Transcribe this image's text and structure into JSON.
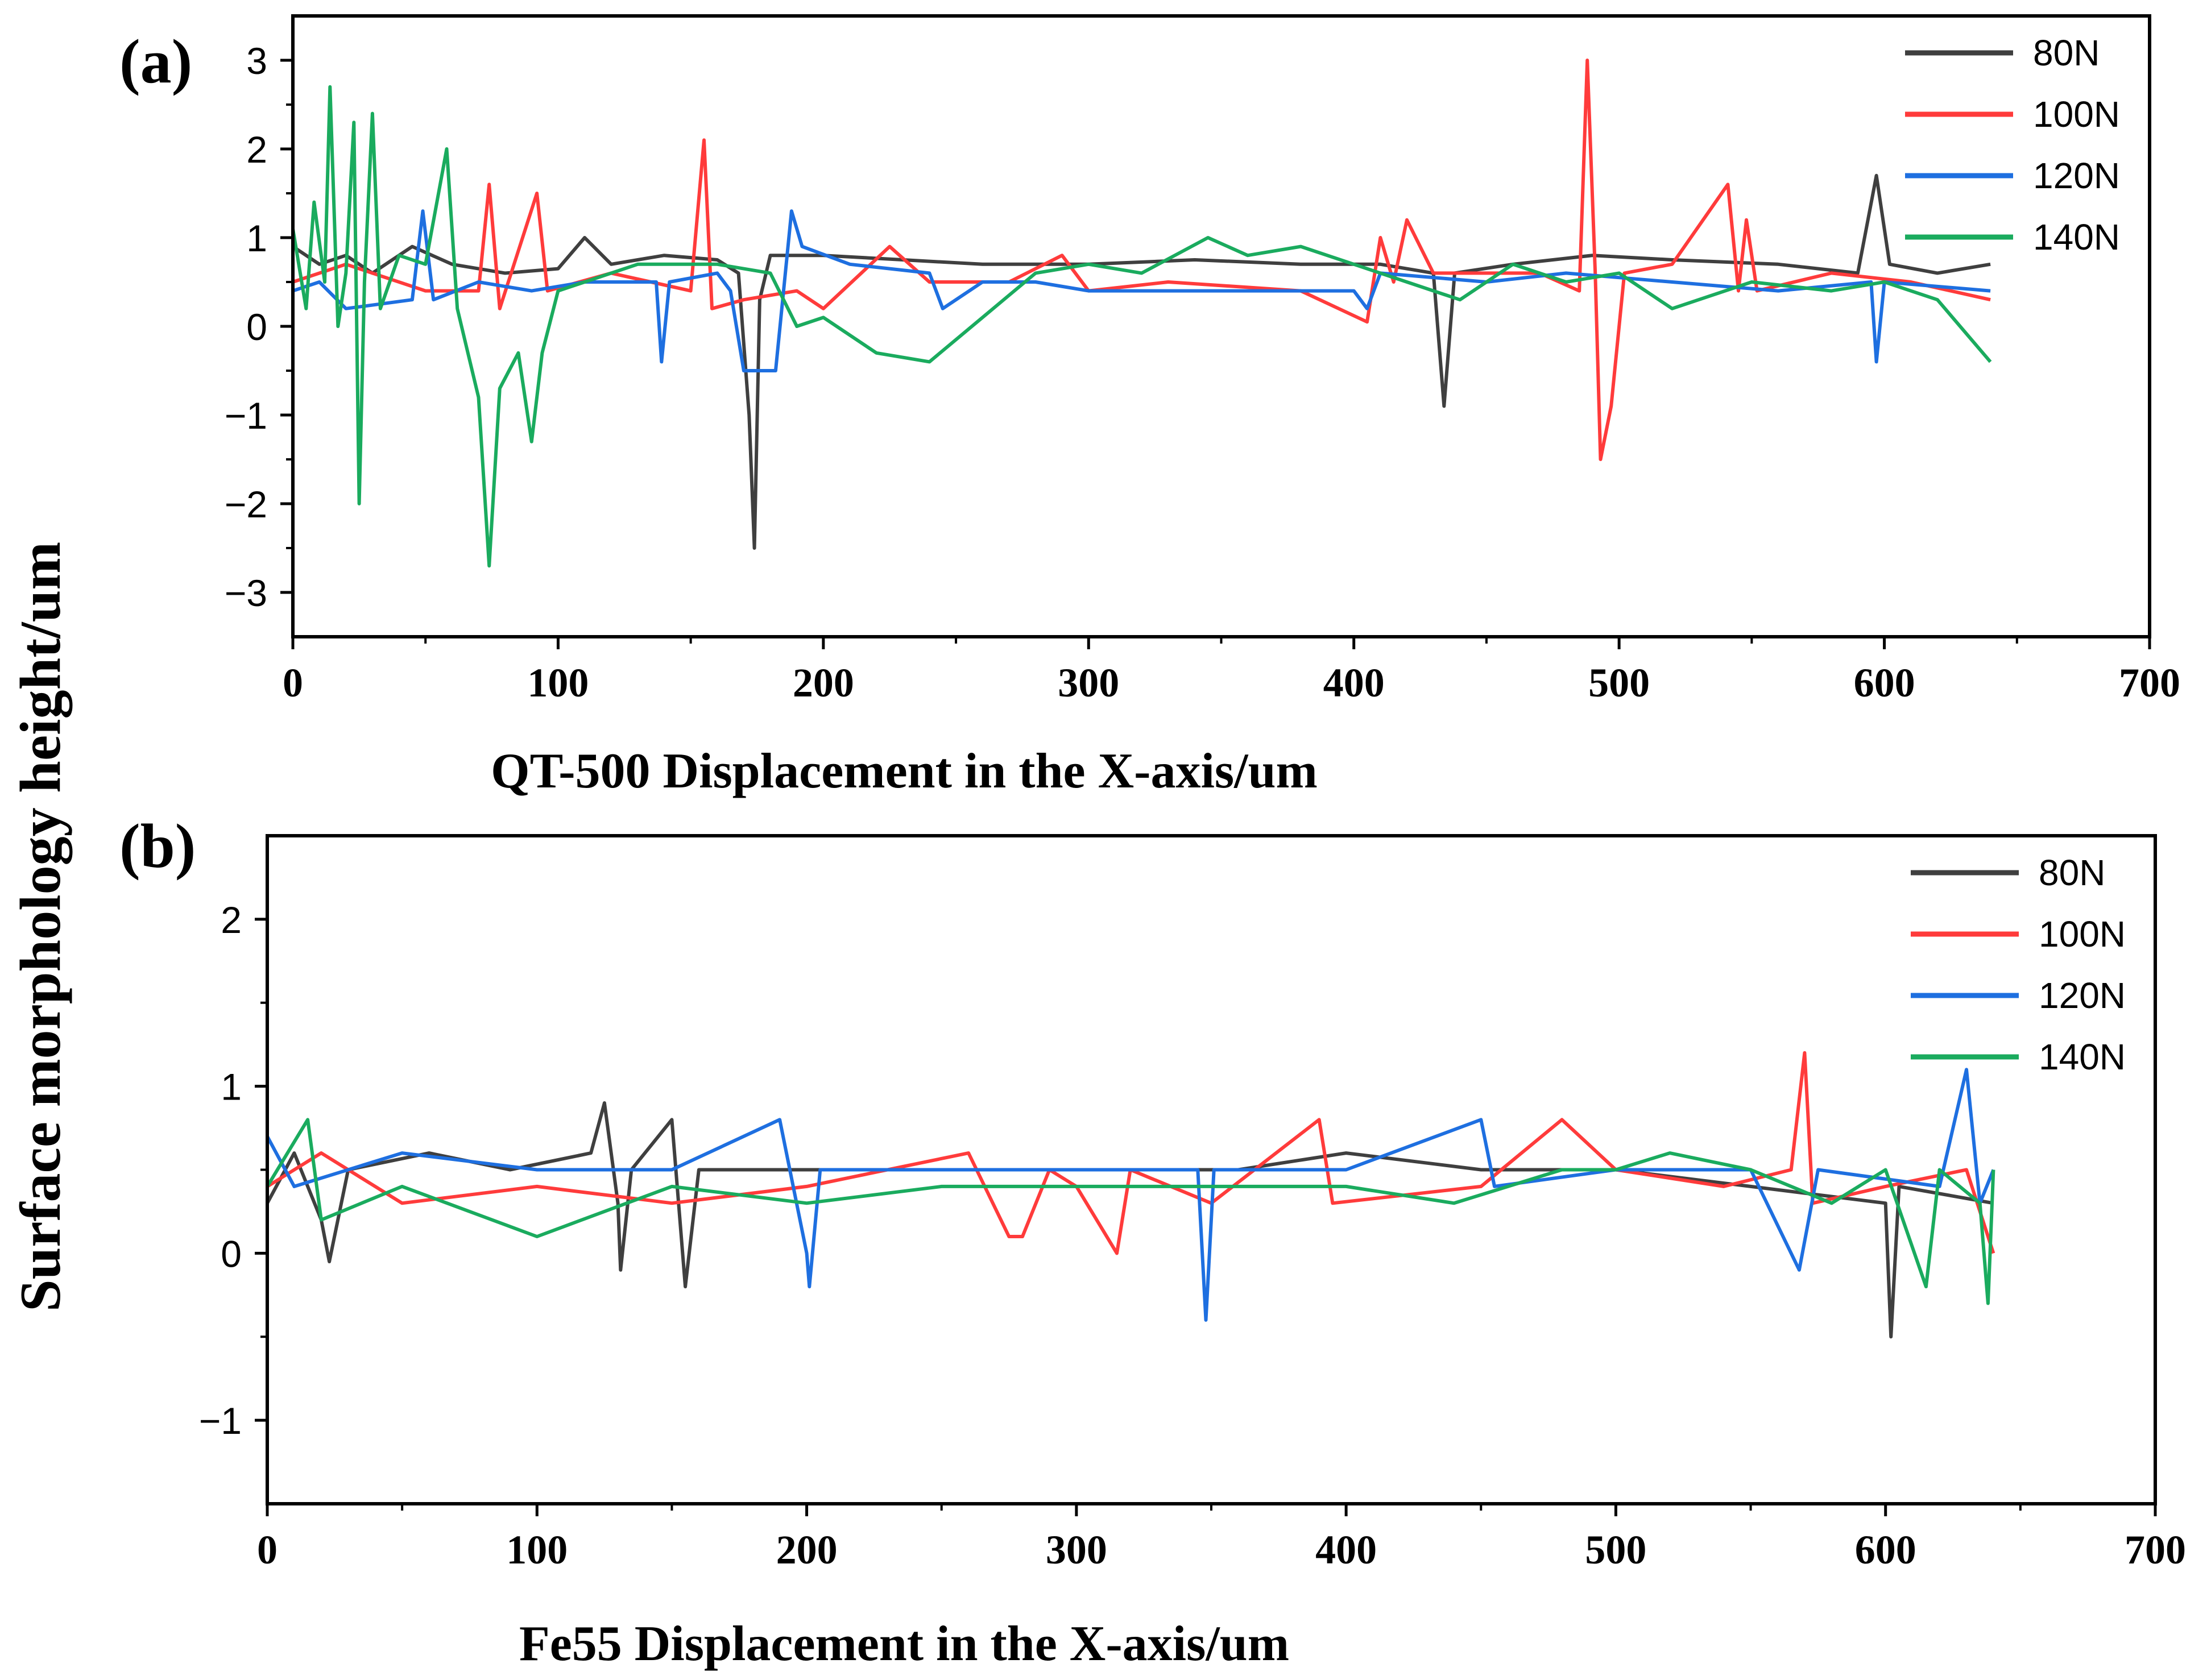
{
  "figure": {
    "shared_ylabel": "Surface morphology height/um",
    "colors": {
      "80N": "#3f3f3f",
      "100N": "#ff3b3b",
      "120N": "#1e6fe0",
      "140N": "#1aab5e"
    }
  },
  "chart_data": [
    {
      "type": "line",
      "panel_label": "(a)",
      "title": "",
      "xlabel": "QT-500 Displacement in the X-axis/um",
      "ylabel": "Surface morphology height/um",
      "xlim": [
        0,
        700
      ],
      "ylim": [
        -3.5,
        3.5
      ],
      "xticks": [
        0,
        100,
        200,
        300,
        400,
        500,
        600,
        700
      ],
      "yticks": [
        -3,
        -2,
        -1,
        0,
        1,
        2,
        3
      ],
      "ytick_labels": [
        "−3",
        "−2",
        "−1",
        "0",
        "1",
        "2",
        "3"
      ],
      "legend_position": "top-right",
      "series": [
        {
          "name": "80N",
          "color": "#3f3f3f",
          "points": [
            [
              0,
              0.9
            ],
            [
              10,
              0.7
            ],
            [
              20,
              0.8
            ],
            [
              30,
              0.6
            ],
            [
              45,
              0.9
            ],
            [
              60,
              0.7
            ],
            [
              80,
              0.6
            ],
            [
              100,
              0.65
            ],
            [
              110,
              1.0
            ],
            [
              120,
              0.7
            ],
            [
              140,
              0.8
            ],
            [
              160,
              0.75
            ],
            [
              168,
              0.6
            ],
            [
              172,
              -1.0
            ],
            [
              174,
              -2.5
            ],
            [
              176,
              0.3
            ],
            [
              180,
              0.8
            ],
            [
              200,
              0.8
            ],
            [
              230,
              0.75
            ],
            [
              260,
              0.7
            ],
            [
              300,
              0.7
            ],
            [
              340,
              0.75
            ],
            [
              380,
              0.7
            ],
            [
              410,
              0.7
            ],
            [
              430,
              0.6
            ],
            [
              434,
              -0.9
            ],
            [
              438,
              0.6
            ],
            [
              460,
              0.7
            ],
            [
              490,
              0.8
            ],
            [
              520,
              0.75
            ],
            [
              560,
              0.7
            ],
            [
              590,
              0.6
            ],
            [
              597,
              1.7
            ],
            [
              602,
              0.7
            ],
            [
              620,
              0.6
            ],
            [
              640,
              0.7
            ]
          ]
        },
        {
          "name": "100N",
          "color": "#ff3b3b",
          "points": [
            [
              0,
              0.5
            ],
            [
              20,
              0.7
            ],
            [
              50,
              0.4
            ],
            [
              70,
              0.4
            ],
            [
              74,
              1.6
            ],
            [
              78,
              0.2
            ],
            [
              92,
              1.5
            ],
            [
              96,
              0.4
            ],
            [
              120,
              0.6
            ],
            [
              150,
              0.4
            ],
            [
              155,
              2.1
            ],
            [
              158,
              0.2
            ],
            [
              170,
              0.3
            ],
            [
              190,
              0.4
            ],
            [
              200,
              0.2
            ],
            [
              225,
              0.9
            ],
            [
              240,
              0.5
            ],
            [
              270,
              0.5
            ],
            [
              290,
              0.8
            ],
            [
              300,
              0.4
            ],
            [
              330,
              0.5
            ],
            [
              380,
              0.4
            ],
            [
              405,
              0.05
            ],
            [
              410,
              1.0
            ],
            [
              415,
              0.5
            ],
            [
              420,
              1.2
            ],
            [
              430,
              0.6
            ],
            [
              470,
              0.6
            ],
            [
              485,
              0.4
            ],
            [
              488,
              3.0
            ],
            [
              491,
              0.6
            ],
            [
              493,
              -1.5
            ],
            [
              497,
              -0.9
            ],
            [
              502,
              0.6
            ],
            [
              520,
              0.7
            ],
            [
              541,
              1.6
            ],
            [
              545,
              0.4
            ],
            [
              548,
              1.2
            ],
            [
              552,
              0.4
            ],
            [
              580,
              0.6
            ],
            [
              610,
              0.5
            ],
            [
              640,
              0.3
            ]
          ]
        },
        {
          "name": "120N",
          "color": "#1e6fe0",
          "points": [
            [
              0,
              0.4
            ],
            [
              10,
              0.5
            ],
            [
              20,
              0.2
            ],
            [
              45,
              0.3
            ],
            [
              49,
              1.3
            ],
            [
              53,
              0.3
            ],
            [
              70,
              0.5
            ],
            [
              90,
              0.4
            ],
            [
              110,
              0.5
            ],
            [
              137,
              0.5
            ],
            [
              139,
              -0.4
            ],
            [
              142,
              0.5
            ],
            [
              160,
              0.6
            ],
            [
              165,
              0.4
            ],
            [
              170,
              -0.5
            ],
            [
              182,
              -0.5
            ],
            [
              188,
              1.3
            ],
            [
              192,
              0.9
            ],
            [
              210,
              0.7
            ],
            [
              240,
              0.6
            ],
            [
              245,
              0.2
            ],
            [
              260,
              0.5
            ],
            [
              280,
              0.5
            ],
            [
              300,
              0.4
            ],
            [
              340,
              0.4
            ],
            [
              400,
              0.4
            ],
            [
              405,
              0.2
            ],
            [
              410,
              0.6
            ],
            [
              450,
              0.5
            ],
            [
              480,
              0.6
            ],
            [
              520,
              0.5
            ],
            [
              560,
              0.4
            ],
            [
              595,
              0.5
            ],
            [
              597,
              -0.4
            ],
            [
              600,
              0.5
            ],
            [
              640,
              0.4
            ]
          ]
        },
        {
          "name": "140N",
          "color": "#1aab5e",
          "points": [
            [
              0,
              1.1
            ],
            [
              5,
              0.2
            ],
            [
              8,
              1.4
            ],
            [
              12,
              0.5
            ],
            [
              14,
              2.7
            ],
            [
              17,
              0.0
            ],
            [
              20,
              0.6
            ],
            [
              23,
              2.3
            ],
            [
              25,
              -2.0
            ],
            [
              27,
              0.5
            ],
            [
              30,
              2.4
            ],
            [
              33,
              0.2
            ],
            [
              40,
              0.8
            ],
            [
              50,
              0.7
            ],
            [
              58,
              2.0
            ],
            [
              62,
              0.2
            ],
            [
              66,
              -0.3
            ],
            [
              70,
              -0.8
            ],
            [
              74,
              -2.7
            ],
            [
              78,
              -0.7
            ],
            [
              85,
              -0.3
            ],
            [
              90,
              -1.3
            ],
            [
              94,
              -0.3
            ],
            [
              100,
              0.4
            ],
            [
              130,
              0.7
            ],
            [
              160,
              0.7
            ],
            [
              180,
              0.6
            ],
            [
              190,
              0.0
            ],
            [
              200,
              0.1
            ],
            [
              220,
              -0.3
            ],
            [
              240,
              -0.4
            ],
            [
              260,
              0.1
            ],
            [
              280,
              0.6
            ],
            [
              300,
              0.7
            ],
            [
              320,
              0.6
            ],
            [
              345,
              1.0
            ],
            [
              360,
              0.8
            ],
            [
              380,
              0.9
            ],
            [
              400,
              0.7
            ],
            [
              420,
              0.5
            ],
            [
              440,
              0.3
            ],
            [
              460,
              0.7
            ],
            [
              480,
              0.5
            ],
            [
              500,
              0.6
            ],
            [
              520,
              0.2
            ],
            [
              550,
              0.5
            ],
            [
              580,
              0.4
            ],
            [
              600,
              0.5
            ],
            [
              620,
              0.3
            ],
            [
              640,
              -0.4
            ]
          ]
        }
      ]
    },
    {
      "type": "line",
      "panel_label": "(b)",
      "title": "",
      "xlabel": "Fe55 Displacement in the X-axis/um",
      "ylabel": "Surface morphology height/um",
      "xlim": [
        0,
        700
      ],
      "ylim": [
        -1.5,
        2.5
      ],
      "xticks": [
        0,
        100,
        200,
        300,
        400,
        500,
        600,
        700
      ],
      "yticks": [
        -1,
        0,
        1,
        2
      ],
      "ytick_labels": [
        "−1",
        "0",
        "1",
        "2"
      ],
      "legend_position": "top-right",
      "series": [
        {
          "name": "80N",
          "color": "#3f3f3f",
          "points": [
            [
              0,
              0.3
            ],
            [
              10,
              0.6
            ],
            [
              20,
              0.2
            ],
            [
              23,
              -0.05
            ],
            [
              30,
              0.5
            ],
            [
              60,
              0.6
            ],
            [
              90,
              0.5
            ],
            [
              120,
              0.6
            ],
            [
              125,
              0.9
            ],
            [
              130,
              0.3
            ],
            [
              131,
              -0.1
            ],
            [
              135,
              0.5
            ],
            [
              150,
              0.8
            ],
            [
              155,
              -0.2
            ],
            [
              160,
              0.5
            ],
            [
              200,
              0.5
            ],
            [
              260,
              0.5
            ],
            [
              300,
              0.5
            ],
            [
              360,
              0.5
            ],
            [
              400,
              0.6
            ],
            [
              450,
              0.5
            ],
            [
              500,
              0.5
            ],
            [
              550,
              0.4
            ],
            [
              600,
              0.3
            ],
            [
              602,
              -0.5
            ],
            [
              605,
              0.4
            ],
            [
              640,
              0.3
            ]
          ]
        },
        {
          "name": "100N",
          "color": "#ff3b3b",
          "points": [
            [
              0,
              0.4
            ],
            [
              20,
              0.6
            ],
            [
              50,
              0.3
            ],
            [
              100,
              0.4
            ],
            [
              150,
              0.3
            ],
            [
              200,
              0.4
            ],
            [
              260,
              0.6
            ],
            [
              275,
              0.1
            ],
            [
              280,
              0.1
            ],
            [
              290,
              0.5
            ],
            [
              300,
              0.4
            ],
            [
              315,
              0.0
            ],
            [
              320,
              0.5
            ],
            [
              350,
              0.3
            ],
            [
              390,
              0.8
            ],
            [
              395,
              0.3
            ],
            [
              450,
              0.4
            ],
            [
              480,
              0.8
            ],
            [
              500,
              0.5
            ],
            [
              540,
              0.4
            ],
            [
              565,
              0.5
            ],
            [
              570,
              1.2
            ],
            [
              573,
              0.3
            ],
            [
              600,
              0.4
            ],
            [
              630,
              0.5
            ],
            [
              640,
              0.0
            ]
          ]
        },
        {
          "name": "120N",
          "color": "#1e6fe0",
          "points": [
            [
              0,
              0.7
            ],
            [
              10,
              0.4
            ],
            [
              50,
              0.6
            ],
            [
              100,
              0.5
            ],
            [
              150,
              0.5
            ],
            [
              190,
              0.8
            ],
            [
              200,
              0.0
            ],
            [
              201,
              -0.2
            ],
            [
              205,
              0.5
            ],
            [
              250,
              0.5
            ],
            [
              300,
              0.5
            ],
            [
              345,
              0.5
            ],
            [
              348,
              -0.4
            ],
            [
              351,
              0.5
            ],
            [
              400,
              0.5
            ],
            [
              450,
              0.8
            ],
            [
              455,
              0.4
            ],
            [
              500,
              0.5
            ],
            [
              550,
              0.5
            ],
            [
              568,
              -0.1
            ],
            [
              575,
              0.5
            ],
            [
              620,
              0.4
            ],
            [
              630,
              1.1
            ],
            [
              635,
              0.3
            ],
            [
              640,
              0.5
            ]
          ]
        },
        {
          "name": "140N",
          "color": "#1aab5e",
          "points": [
            [
              0,
              0.4
            ],
            [
              15,
              0.8
            ],
            [
              20,
              0.2
            ],
            [
              50,
              0.4
            ],
            [
              100,
              0.1
            ],
            [
              150,
              0.4
            ],
            [
              200,
              0.3
            ],
            [
              250,
              0.4
            ],
            [
              300,
              0.4
            ],
            [
              350,
              0.4
            ],
            [
              400,
              0.4
            ],
            [
              440,
              0.3
            ],
            [
              480,
              0.5
            ],
            [
              500,
              0.5
            ],
            [
              520,
              0.6
            ],
            [
              550,
              0.5
            ],
            [
              580,
              0.3
            ],
            [
              600,
              0.5
            ],
            [
              615,
              -0.2
            ],
            [
              620,
              0.5
            ],
            [
              635,
              0.3
            ],
            [
              638,
              -0.3
            ],
            [
              640,
              0.5
            ]
          ]
        }
      ]
    }
  ]
}
